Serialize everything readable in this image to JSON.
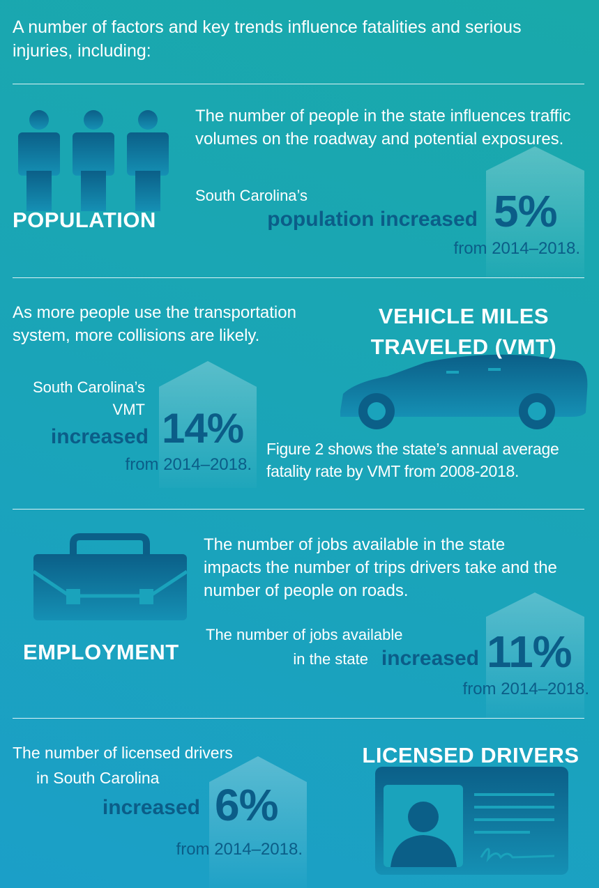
{
  "intro": "A number of factors and key trends influence fatalities and serious injuries, including:",
  "population": {
    "heading": "POPULATION",
    "description": "The number of people in the state influences traffic volumes on the roadway and potential exposures.",
    "stat_lead": [
      "South Carolina’s"
    ],
    "stat_emphasis": "population increased",
    "stat_value": "5%",
    "stat_period": "from 2014–2018."
  },
  "vmt": {
    "heading": [
      "VEHICLE MILES",
      "TRAVELED (VMT)"
    ],
    "description": "As more people use the transportation system, more collisions are likely.",
    "stat_lead": [
      "South Carolina’s",
      "VMT"
    ],
    "stat_emphasis": "increased",
    "stat_value": "14%",
    "stat_period": "from 2014–2018.",
    "note": "Figure 2 shows the state’s annual average fatality rate by VMT from 2008-2018."
  },
  "employment": {
    "heading": "EMPLOYMENT",
    "description": "The number of jobs available in the state impacts the number of trips drivers take and the number of people on roads.",
    "stat_lead": [
      "The number of jobs available",
      "in the state"
    ],
    "stat_emphasis": "increased",
    "stat_value": "11%",
    "stat_period": "from 2014–2018."
  },
  "licensed_drivers": {
    "heading": "LICENSED DRIVERS",
    "stat_lead": [
      "The number of licensed drivers",
      "in South Carolina"
    ],
    "stat_emphasis": "increased",
    "stat_value": "6%",
    "stat_period": "from 2014–2018."
  }
}
